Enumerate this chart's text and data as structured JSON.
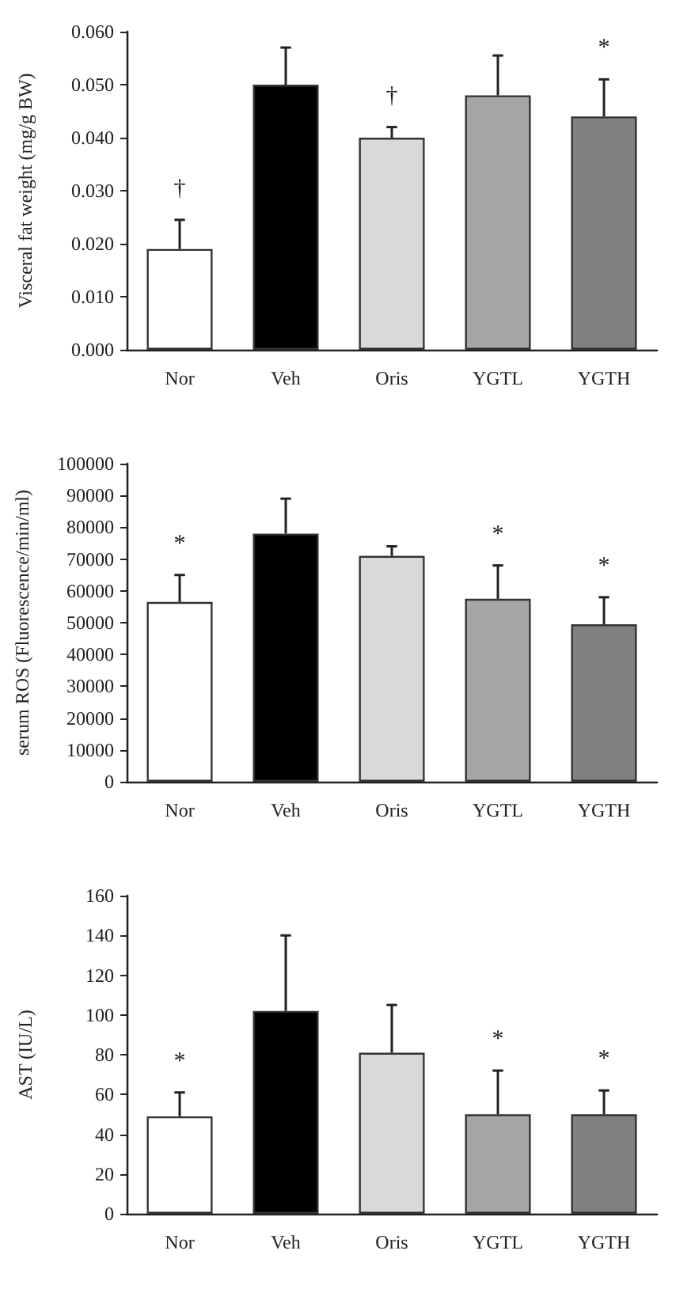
{
  "chart_data": [
    {
      "type": "bar",
      "ylabel": "Visceral fat weight (mg/g BW)",
      "categories": [
        "Nor",
        "Veh",
        "Oris",
        "YGTL",
        "YGTH"
      ],
      "values": [
        0.019,
        0.05,
        0.04,
        0.048,
        0.044
      ],
      "colors": [
        "#ffffff",
        "#000000",
        "#d9d9d9",
        "#a6a6a6",
        "#808080"
      ],
      "errors": [
        [
          0.019,
          0.0245
        ],
        [
          0.05,
          0.057
        ],
        [
          0.04,
          0.042
        ],
        [
          0.048,
          0.0555
        ],
        [
          0.044,
          0.051
        ]
      ],
      "ylim": [
        0,
        0.06
      ],
      "yticks": [
        {
          "value": 0,
          "label": "0.000"
        },
        {
          "value": 0.01,
          "label": "0.010"
        },
        {
          "value": 0.02,
          "label": "0.020"
        },
        {
          "value": 0.03,
          "label": "0.030"
        },
        {
          "value": 0.04,
          "label": "0.040"
        },
        {
          "value": 0.05,
          "label": "0.050"
        },
        {
          "value": 0.06,
          "label": "0.060"
        }
      ],
      "annotations": [
        {
          "text": "†",
          "x": "Nor",
          "y": 0.0245
        },
        {
          "text": "†",
          "x": "Oris",
          "y": 0.042
        },
        {
          "text": "*",
          "x": "YGTH",
          "y": 0.051
        }
      ],
      "grid": false
    },
    {
      "type": "bar",
      "ylabel": "serum ROS (Fluorescence/min/ml)",
      "categories": [
        "Nor",
        "Veh",
        "Oris",
        "YGTL",
        "YGTH"
      ],
      "values": [
        56500,
        78000,
        71000,
        57500,
        49500
      ],
      "colors": [
        "#ffffff",
        "#000000",
        "#d9d9d9",
        "#a6a6a6",
        "#808080"
      ],
      "errors": [
        [
          56500,
          65000
        ],
        [
          78000,
          89000
        ],
        [
          71000,
          74000
        ],
        [
          57500,
          68000
        ],
        [
          49500,
          58000
        ]
      ],
      "ylim": [
        0,
        100000
      ],
      "yticks": [
        0,
        10000,
        20000,
        30000,
        40000,
        50000,
        60000,
        70000,
        80000,
        90000,
        100000
      ],
      "annotations": [
        {
          "text": "*",
          "x": "Nor",
          "y": 65000
        },
        {
          "text": "*",
          "x": "YGTL",
          "y": 68000
        },
        {
          "text": "*",
          "x": "YGTH",
          "y": 58000
        }
      ],
      "grid": false
    },
    {
      "type": "bar",
      "ylabel": "AST (IU/L)",
      "categories": [
        "Nor",
        "Veh",
        "Oris",
        "YGTL",
        "YGTH"
      ],
      "values": [
        49,
        102,
        81,
        50,
        50
      ],
      "colors": [
        "#ffffff",
        "#000000",
        "#d9d9d9",
        "#a6a6a6",
        "#808080"
      ],
      "errors": [
        [
          49,
          61
        ],
        [
          102,
          140
        ],
        [
          81,
          105
        ],
        [
          50,
          72
        ],
        [
          50,
          62
        ]
      ],
      "ylim": [
        0,
        160
      ],
      "yticks": [
        0,
        20,
        40,
        60,
        80,
        100,
        120,
        140,
        160
      ],
      "annotations": [
        {
          "text": "*",
          "x": "Nor",
          "y": 61
        },
        {
          "text": "*",
          "x": "YGTL",
          "y": 72
        },
        {
          "text": "*",
          "x": "YGTH",
          "y": 62
        }
      ],
      "grid": false
    }
  ]
}
